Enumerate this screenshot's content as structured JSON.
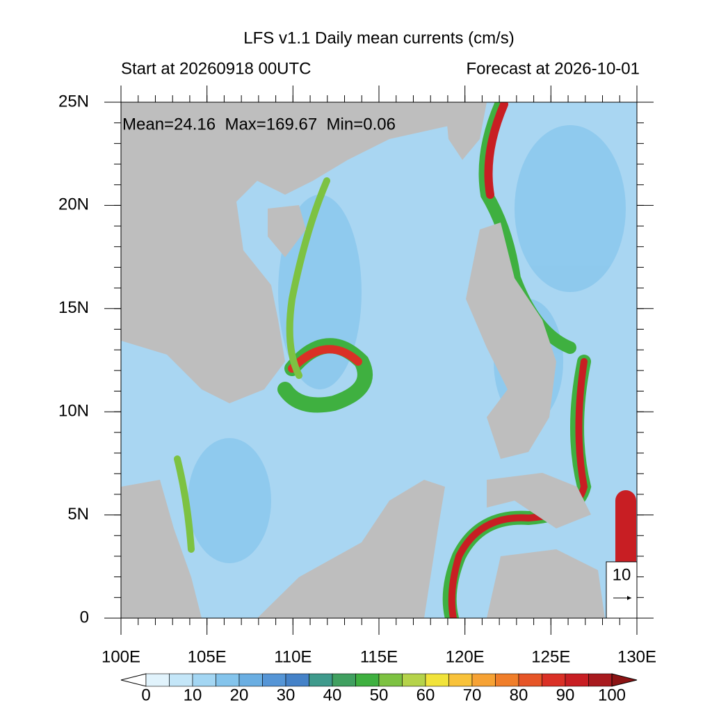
{
  "title": "LFS v1.1 Daily mean currents (cm/s)",
  "subtitle_left": "Start at 20260918 00UTC",
  "subtitle_right": "Forecast at 2026-10-01",
  "annotation": "Mean=24.16  Max=169.67  Min=0.06",
  "map": {
    "xlim": [
      100,
      130
    ],
    "ylim": [
      0,
      25
    ],
    "xticks": [
      {
        "value": 100,
        "label": "100E"
      },
      {
        "value": 105,
        "label": "105E"
      },
      {
        "value": 110,
        "label": "110E"
      },
      {
        "value": 115,
        "label": "115E"
      },
      {
        "value": 120,
        "label": "120E"
      },
      {
        "value": 125,
        "label": "125E"
      },
      {
        "value": 130,
        "label": "130E"
      }
    ],
    "yticks": [
      {
        "value": 0,
        "label": "0"
      },
      {
        "value": 5,
        "label": "5N"
      },
      {
        "value": 10,
        "label": "10N"
      },
      {
        "value": 15,
        "label": "15N"
      },
      {
        "value": 20,
        "label": "20N"
      },
      {
        "value": 25,
        "label": "25N"
      }
    ]
  },
  "reference_vector": 10,
  "colorbar": {
    "range": [
      0,
      100
    ],
    "ticks": [
      0,
      10,
      20,
      30,
      40,
      50,
      60,
      70,
      80,
      90,
      100
    ],
    "colors": [
      "#ffffff",
      "#e1f3fc",
      "#c4e6f8",
      "#a3d6f3",
      "#84c4ec",
      "#6aaee2",
      "#5595d6",
      "#4582c8",
      "#3f9a8c",
      "#40a060",
      "#3fb040",
      "#7dc242",
      "#b5d34a",
      "#f1e33a",
      "#f8c23a",
      "#f6a234",
      "#f07e2a",
      "#e65527",
      "#da3026",
      "#c81e23",
      "#a81a1e",
      "#8b1414"
    ]
  }
}
